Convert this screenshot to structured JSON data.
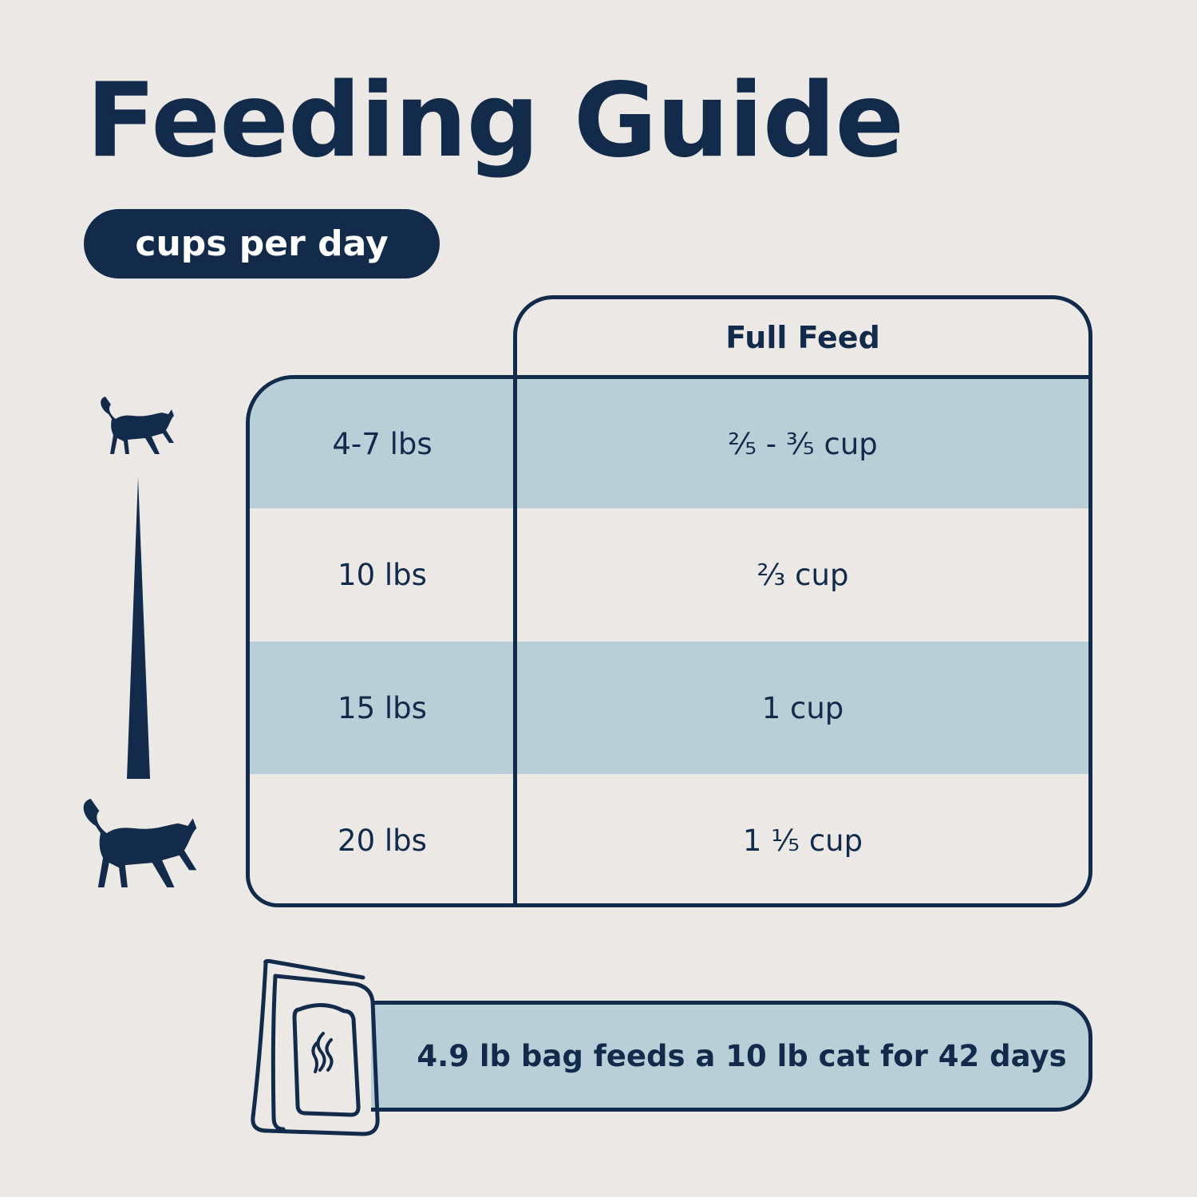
{
  "title": "Feeding Guide",
  "unit_badge": "cups per day",
  "table": {
    "column_header": "Full Feed",
    "rows": [
      {
        "weight": "4-7 lbs",
        "amount": "²⁄₅ - ³⁄₅ cup"
      },
      {
        "weight": "10 lbs",
        "amount": "²⁄₃ cup"
      },
      {
        "weight": "15 lbs",
        "amount": "1 cup"
      },
      {
        "weight": "20 lbs",
        "amount": "1 ¹⁄₅ cup"
      }
    ]
  },
  "footer_note": "4.9 lb bag feeds a 10 lb cat for 42 days",
  "colors": {
    "navy": "#122b4b",
    "light_blue": "#b8cfd8",
    "background": "#ece8e5"
  },
  "icons": [
    "small-cat-icon",
    "weight-scale-wedge-icon",
    "large-cat-icon",
    "food-bag-icon"
  ]
}
